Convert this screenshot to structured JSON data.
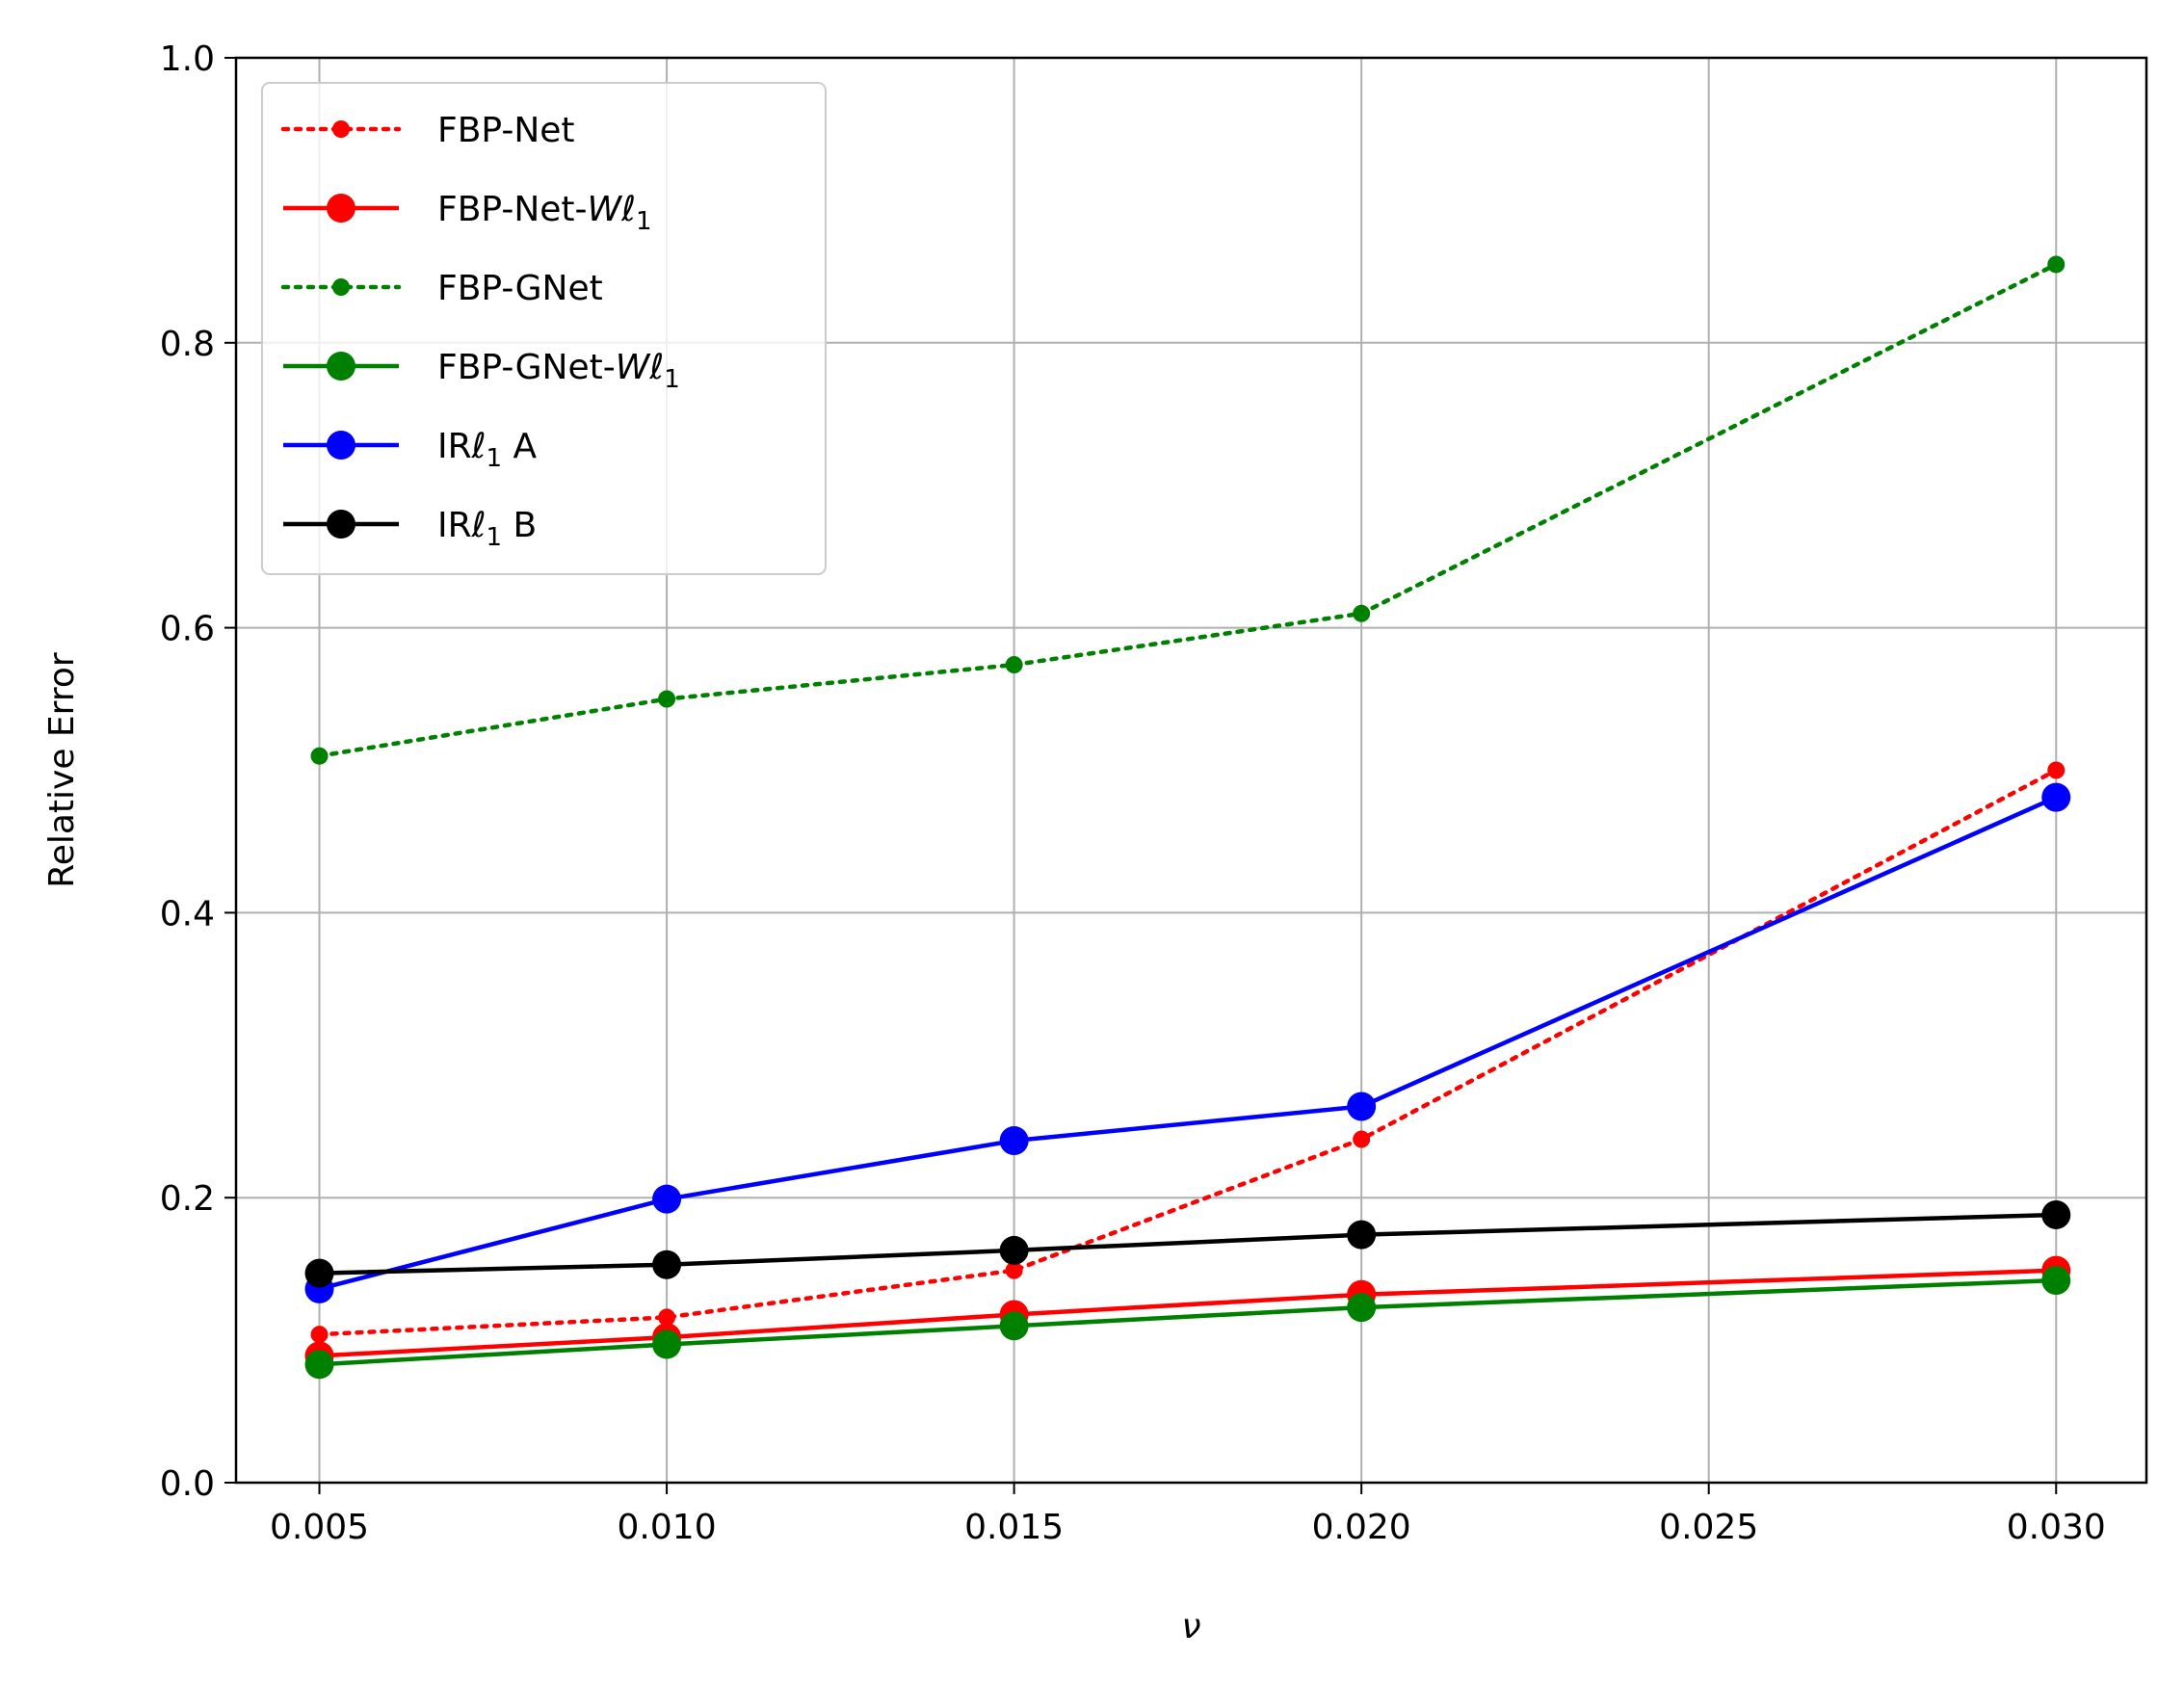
{
  "chart_data": {
    "type": "line",
    "title": "",
    "xlabel": "ν",
    "ylabel": "Relative Error",
    "xlim": [
      0.0038,
      0.0313
    ],
    "ylim": [
      0.0,
      1.0
    ],
    "xticks": [
      "0.005",
      "0.010",
      "0.015",
      "0.020",
      "0.025",
      "0.030"
    ],
    "xtick_values": [
      0.005,
      0.01,
      0.015,
      0.02,
      0.025,
      0.03
    ],
    "yticks": [
      "0.0",
      "0.2",
      "0.4",
      "0.6",
      "0.8",
      "1.0"
    ],
    "ytick_values": [
      0.0,
      0.2,
      0.4,
      0.6,
      0.8,
      1.0
    ],
    "grid": true,
    "legend_position": "upper-left",
    "x": [
      0.005,
      0.01,
      0.015,
      0.02,
      0.03
    ],
    "series": [
      {
        "name": "FBP-Net",
        "legend_base": "FBP-Net",
        "legend_italic": "",
        "legend_sub": "",
        "legend_tail": "",
        "color": "#ff0000",
        "style": "dotted",
        "marker": "small",
        "values": [
          0.104,
          0.116,
          0.149,
          0.241,
          0.5
        ]
      },
      {
        "name": "FBP-Net-Wℓ1",
        "legend_base": "FBP-Net-",
        "legend_italic": "Wℓ",
        "legend_sub": "1",
        "legend_tail": "",
        "color": "#ff0000",
        "style": "solid",
        "marker": "large",
        "values": [
          0.089,
          0.102,
          0.118,
          0.132,
          0.149
        ]
      },
      {
        "name": "FBP-GNet",
        "legend_base": "FBP-GNet",
        "legend_italic": "",
        "legend_sub": "",
        "legend_tail": "",
        "color": "#008000",
        "style": "dotted",
        "marker": "small",
        "values": [
          0.51,
          0.55,
          0.574,
          0.61,
          0.855
        ]
      },
      {
        "name": "FBP-GNet-Wℓ1",
        "legend_base": "FBP-GNet-",
        "legend_italic": "Wℓ",
        "legend_sub": "1",
        "legend_tail": "",
        "color": "#008000",
        "style": "solid",
        "marker": "large",
        "values": [
          0.083,
          0.097,
          0.11,
          0.123,
          0.142
        ]
      },
      {
        "name": "IRℓ1 A",
        "legend_base": "IR",
        "legend_italic": "ℓ",
        "legend_sub": "1",
        "legend_tail": " A",
        "color": "#0000ff",
        "style": "solid",
        "marker": "large",
        "values": [
          0.136,
          0.199,
          0.24,
          0.264,
          0.481
        ]
      },
      {
        "name": "IRℓ1 B",
        "legend_base": "IR",
        "legend_italic": "ℓ",
        "legend_sub": "1",
        "legend_tail": " B",
        "color": "#000000",
        "style": "solid",
        "marker": "large",
        "values": [
          0.147,
          0.153,
          0.163,
          0.174,
          0.188
        ]
      }
    ]
  }
}
